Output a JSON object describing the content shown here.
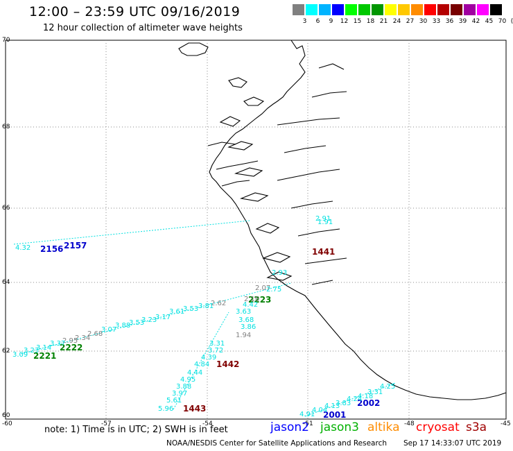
{
  "title": "12:00 – 23:59 UTC 09/16/2019",
  "subtitle": "12 hour collection of altimeter wave heights",
  "colorbar": {
    "colors": [
      "#808080",
      "#00ffff",
      "#00b4ff",
      "#0000ff",
      "#00ff00",
      "#00c800",
      "#009600",
      "#ffff00",
      "#ffc800",
      "#ff8c00",
      "#ff0000",
      "#b40000",
      "#780000",
      "#a000a0",
      "#ff00ff",
      "#000000"
    ],
    "labels": [
      "3",
      "6",
      "9",
      "12",
      "15",
      "18",
      "21",
      "24",
      "27",
      "30",
      "33",
      "36",
      "39",
      "42",
      "45",
      "70",
      "(ft)"
    ]
  },
  "axes": {
    "lon_labels": [
      "-60",
      "-57",
      "-54",
      "-51",
      "-48",
      "-45"
    ],
    "lat_labels": [
      "70",
      "68",
      "66",
      "64",
      "62",
      "60"
    ]
  },
  "passes": [
    {
      "id": "2156",
      "color": "#0000cc"
    },
    {
      "id": "2157",
      "color": "#0000cc"
    },
    {
      "id": "2223",
      "color": "#008000"
    },
    {
      "id": "2222",
      "color": "#008000"
    },
    {
      "id": "2221",
      "color": "#008000"
    },
    {
      "id": "1442",
      "color": "#800000"
    },
    {
      "id": "1443",
      "color": "#800000"
    },
    {
      "id": "1441",
      "color": "#800000"
    },
    {
      "id": "2001",
      "color": "#0000cc"
    },
    {
      "id": "2002",
      "color": "#0000cc"
    }
  ],
  "wave_labels": [
    {
      "v": "4.32",
      "c": "#00e0e0"
    },
    {
      "v": "2.91",
      "c": "#00e0e0"
    },
    {
      "v": "2.07",
      "c": "#808080"
    },
    {
      "v": "2.75",
      "c": "#00e0e0"
    },
    {
      "v": "2.16",
      "c": "#808080"
    },
    {
      "v": "2.62",
      "c": "#808080"
    },
    {
      "v": "4.42",
      "c": "#00e0e0"
    },
    {
      "v": "3.81",
      "c": "#00e0e0"
    },
    {
      "v": "3.53",
      "c": "#00e0e0"
    },
    {
      "v": "3.61",
      "c": "#00e0e0"
    },
    {
      "v": "3.17",
      "c": "#00e0e0"
    },
    {
      "v": "3.23",
      "c": "#00e0e0"
    },
    {
      "v": "3.53",
      "c": "#00e0e0"
    },
    {
      "v": "3.88",
      "c": "#00e0e0"
    },
    {
      "v": "3.07",
      "c": "#00e0e0"
    },
    {
      "v": "2.68",
      "c": "#808080"
    },
    {
      "v": "2.34",
      "c": "#808080"
    },
    {
      "v": "2.95",
      "c": "#808080"
    },
    {
      "v": "3.37",
      "c": "#00e0e0"
    },
    {
      "v": "3.14",
      "c": "#00e0e0"
    },
    {
      "v": "3.23",
      "c": "#00e0e0"
    },
    {
      "v": "3.09",
      "c": "#00e0e0"
    },
    {
      "v": "3.63",
      "c": "#00e0e0"
    },
    {
      "v": "3.68",
      "c": "#00e0e0"
    },
    {
      "v": "3.86",
      "c": "#00e0e0"
    },
    {
      "v": "1.94",
      "c": "#808080"
    },
    {
      "v": "3.31",
      "c": "#00e0e0"
    },
    {
      "v": "3.72",
      "c": "#00e0e0"
    },
    {
      "v": "4.39",
      "c": "#00e0e0"
    },
    {
      "v": "4.84",
      "c": "#00e0e0"
    },
    {
      "v": "4.44",
      "c": "#00e0e0"
    },
    {
      "v": "4.95",
      "c": "#00e0e0"
    },
    {
      "v": "3.88",
      "c": "#00e0e0"
    },
    {
      "v": "3.97",
      "c": "#00e0e0"
    },
    {
      "v": "5.61",
      "c": "#00e0e0"
    },
    {
      "v": "5.96",
      "c": "#00e0e0"
    },
    {
      "v": "4.91",
      "c": "#00e0e0"
    },
    {
      "v": "4.04",
      "c": "#00e0e0"
    },
    {
      "v": "4.13",
      "c": "#00e0e0"
    },
    {
      "v": "3.83",
      "c": "#00e0e0"
    },
    {
      "v": "4.24",
      "c": "#00e0e0"
    },
    {
      "v": "4.18",
      "c": "#00e0e0"
    },
    {
      "v": "3.31",
      "c": "#00e0e0"
    },
    {
      "v": "4.25",
      "c": "#00e0e0"
    },
    {
      "v": "2.93",
      "c": "#00e0e0"
    },
    {
      "v": "1.91",
      "c": "#00e0e0"
    }
  ],
  "note": "note: 1) Time is in UTC; 2) SWH is in feet",
  "legend": [
    {
      "name": "jason2",
      "color": "#0000ff"
    },
    {
      "name": "jason3",
      "color": "#00b000"
    },
    {
      "name": "altika",
      "color": "#ff8c00"
    },
    {
      "name": "cryosat",
      "color": "#ff0000"
    },
    {
      "name": "s3a",
      "color": "#a00000"
    }
  ],
  "footer": "NOAA/NESDIS Center for Satellite Applications and Research",
  "timestamp": "Sep 17 14:33:07 UTC 2019"
}
